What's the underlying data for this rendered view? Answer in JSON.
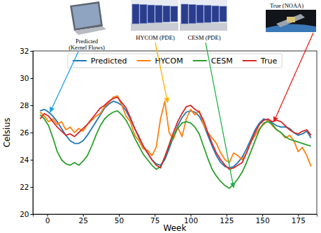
{
  "chart_data": {
    "type": "line",
    "x_label": "Week",
    "y_label": "Celsius",
    "x": [
      -5,
      -2,
      1,
      4,
      7,
      10,
      13,
      16,
      19,
      22,
      25,
      28,
      31,
      34,
      37,
      40,
      43,
      46,
      49,
      52,
      55,
      58,
      61,
      64,
      67,
      70,
      73,
      76,
      79,
      82,
      85,
      88,
      91,
      94,
      97,
      100,
      103,
      106,
      109,
      112,
      115,
      118,
      121,
      124,
      127,
      130,
      133,
      136,
      139,
      142,
      145,
      148,
      151,
      154,
      157,
      160,
      163,
      166,
      169,
      172,
      175,
      178,
      181,
      184
    ],
    "series": [
      {
        "name": "Predicted",
        "color": "#1f77b4",
        "values": [
          27.6,
          27.7,
          27.5,
          27.2,
          26.8,
          26.3,
          25.8,
          25.4,
          25.2,
          25.2,
          25.4,
          25.8,
          26.3,
          26.8,
          27.3,
          27.8,
          28.1,
          28.3,
          28.2,
          28.0,
          27.6,
          27.0,
          26.3,
          25.6,
          25.0,
          24.5,
          24.0,
          23.7,
          23.6,
          24.0,
          24.8,
          25.7,
          26.5,
          27.1,
          27.5,
          27.6,
          27.5,
          27.2,
          26.6,
          25.8,
          25.0,
          24.3,
          23.8,
          23.5,
          23.4,
          23.5,
          23.8,
          24.2,
          24.8,
          25.5,
          26.2,
          26.7,
          27.0,
          26.9,
          26.7,
          26.5,
          26.4,
          26.4,
          26.3,
          26.0,
          25.8,
          25.9,
          26.1,
          25.6
        ]
      },
      {
        "name": "HYCOM",
        "color": "#ff7f0e",
        "values": [
          27.5,
          27.2,
          26.8,
          27.0,
          26.6,
          26.8,
          26.2,
          26.4,
          26.0,
          26.3,
          26.1,
          26.6,
          26.9,
          27.2,
          27.4,
          27.9,
          28.2,
          28.6,
          28.7,
          28.0,
          27.2,
          26.8,
          25.8,
          25.4,
          24.8,
          24.7,
          24.3,
          24.9,
          27.0,
          28.3,
          26.0,
          25.5,
          26.4,
          25.7,
          27.0,
          27.7,
          27.3,
          27.6,
          26.6,
          26.0,
          25.6,
          25.2,
          24.5,
          24.0,
          23.8,
          24.5,
          24.3,
          24.0,
          24.5,
          25.3,
          25.8,
          26.3,
          26.6,
          26.9,
          26.5,
          26.2,
          26.0,
          25.6,
          25.8,
          25.4,
          24.6,
          24.9,
          24.3,
          23.5
        ]
      },
      {
        "name": "CESM",
        "color": "#2ca02c",
        "values": [
          27.3,
          27.0,
          26.5,
          25.6,
          24.6,
          24.0,
          23.7,
          23.6,
          23.8,
          23.6,
          23.9,
          24.3,
          25.0,
          25.8,
          26.5,
          27.0,
          27.3,
          27.5,
          27.6,
          27.3,
          26.9,
          26.3,
          25.6,
          25.0,
          24.4,
          24.0,
          23.6,
          23.3,
          23.5,
          24.2,
          25.0,
          25.7,
          26.3,
          26.7,
          26.8,
          26.7,
          26.4,
          25.9,
          25.0,
          24.1,
          23.3,
          22.8,
          22.4,
          22.1,
          21.9,
          22.2,
          22.6,
          23.1,
          23.8,
          24.6,
          25.4,
          26.2,
          26.7,
          26.8,
          26.6,
          26.2,
          26.0,
          25.7,
          25.5,
          25.4,
          25.3,
          25.2,
          25.1,
          25.0
        ]
      },
      {
        "name": "True",
        "color": "#d62728",
        "values": [
          27.0,
          27.4,
          27.2,
          26.8,
          26.4,
          26.1,
          25.8,
          25.9,
          25.7,
          26.0,
          26.3,
          26.6,
          27.0,
          27.4,
          27.8,
          28.0,
          28.3,
          28.5,
          28.6,
          28.2,
          27.8,
          27.1,
          26.3,
          25.7,
          25.0,
          24.5,
          24.0,
          23.6,
          23.4,
          24.2,
          25.1,
          26.0,
          26.8,
          27.4,
          27.9,
          28.0,
          27.7,
          27.5,
          26.9,
          26.0,
          25.2,
          24.5,
          24.0,
          23.6,
          23.3,
          23.4,
          23.6,
          23.8,
          24.5,
          25.3,
          26.0,
          26.6,
          26.9,
          27.0,
          26.8,
          26.9,
          26.8,
          26.5,
          26.2,
          26.0,
          25.9,
          26.1,
          26.2,
          25.8
        ]
      }
    ],
    "xlim": [
      -10,
      188
    ],
    "ylim": [
      20,
      32
    ],
    "xticks": [
      0,
      25,
      50,
      75,
      100,
      125,
      150,
      175
    ],
    "yticks": [
      20,
      22,
      24,
      26,
      28,
      30,
      32
    ],
    "grid": false,
    "legend": "upper center",
    "annotations": [
      {
        "text": "Predicted\n(Kernel Flows)",
        "x": 2,
        "y": 27.5,
        "color": "#1ea0e6"
      },
      {
        "text": "HYCOM (PDE)",
        "x": 84,
        "y": 28.2,
        "color": "#ffb000"
      },
      {
        "text": "CESM (PDE)",
        "x": 130,
        "y": 21.95,
        "color": "#20b040"
      },
      {
        "text": "True (NOAA)",
        "x": 158,
        "y": 26.8,
        "color": "#e8201a"
      }
    ]
  }
}
